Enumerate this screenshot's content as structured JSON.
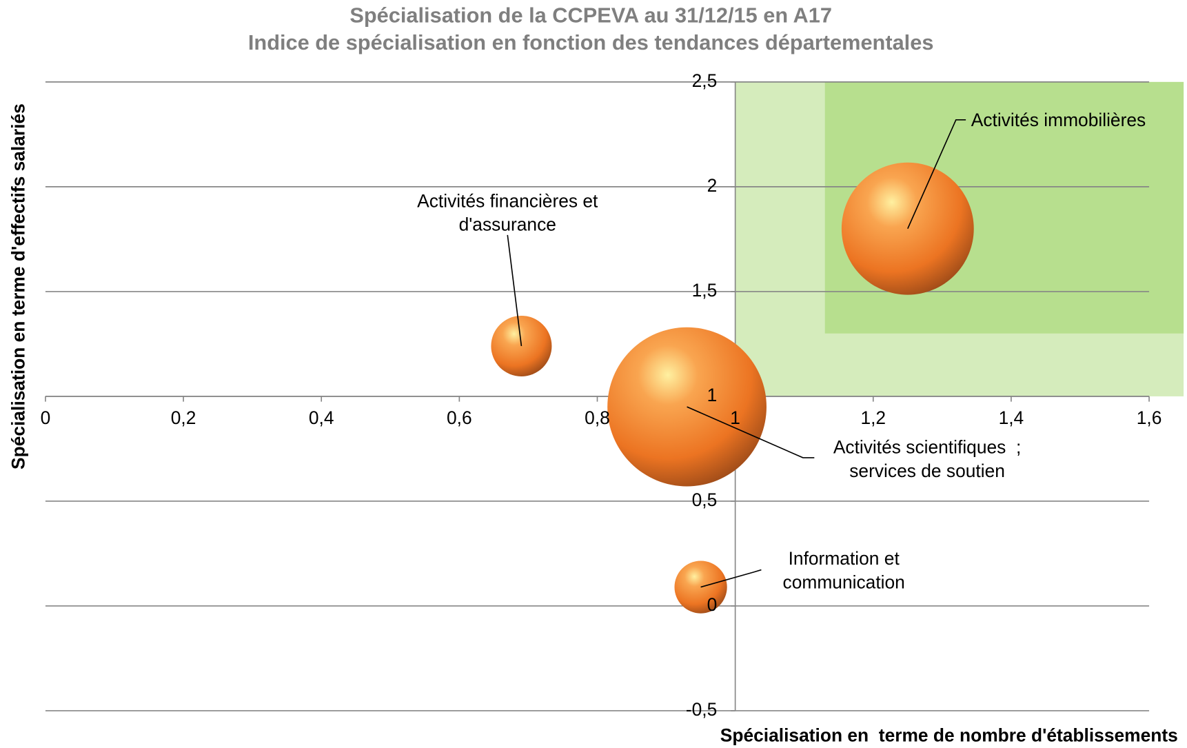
{
  "chart_data": {
    "type": "bubble",
    "title": "Spécialisation de la CCPEVA au 31/12/15 en A17",
    "subtitle": "Indice de spécialisation en fonction des tendances départementales",
    "x_label": "Spécialisation en  terme de nombre d'établissements",
    "y_label": "Spécialisation en terme d'effectifs salariés",
    "xlim": [
      0,
      1.6
    ],
    "ylim": [
      -0.5,
      2.5
    ],
    "xticks": [
      0,
      {
        "value": 0.2,
        "label": "0,2"
      },
      {
        "value": 0.4,
        "label": "0,4"
      },
      {
        "value": 0.6,
        "label": "0,6"
      },
      {
        "value": 0.8,
        "label": "0,8"
      },
      1,
      {
        "value": 1.2,
        "label": "1,2"
      },
      {
        "value": 1.4,
        "label": "1,4"
      },
      {
        "value": 1.6,
        "label": "1,6"
      }
    ],
    "yticks": [
      {
        "value": -0.5,
        "label": "-0,5"
      },
      0,
      {
        "value": 0.5,
        "label": "0,5"
      },
      1,
      {
        "value": 1.5,
        "label": "1,5"
      },
      2,
      {
        "value": 2.5,
        "label": "2,5"
      }
    ],
    "axis_cross": [
      1,
      1
    ],
    "grid": true,
    "color": "#f07a24",
    "regions": [
      {
        "x": [
          1,
          1.65
        ],
        "y": [
          1,
          2.5
        ],
        "color": "#d5ecbc"
      },
      {
        "x": [
          1.13,
          1.65
        ],
        "y": [
          1.3,
          2.5
        ],
        "color": "#b7df8e"
      }
    ],
    "points": [
      {
        "label": [
          "Activités immobilières"
        ],
        "x": 1.25,
        "y": 1.8,
        "size": 76
      },
      {
        "label": [
          "Activités financières et",
          "d'assurance"
        ],
        "x": 0.69,
        "y": 1.24,
        "size": 16
      },
      {
        "label": [
          "Activités scientifiques  ;",
          "services de soutien"
        ],
        "x": 0.93,
        "y": 0.95,
        "size": 110
      },
      {
        "label": [
          "Information et",
          "communication"
        ],
        "x": 0.95,
        "y": 0.09,
        "size": 12
      }
    ]
  }
}
